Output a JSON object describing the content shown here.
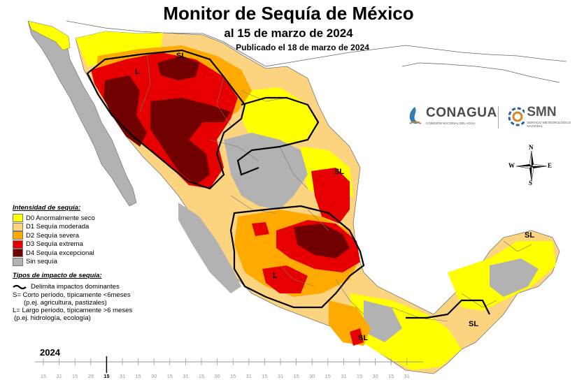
{
  "header": {
    "title": "Monitor de Sequía de México",
    "subtitle": "al 15 de marzo de 2024",
    "published": "Publicado el 18 de marzo de 2024"
  },
  "legend": {
    "title": "Intensidad de sequía:",
    "items": [
      {
        "label": "D0 Anormalmente seco",
        "color": "#ffff00"
      },
      {
        "label": "D1 Sequía moderada",
        "color": "#fcd37f"
      },
      {
        "label": "D2 Sequía severa",
        "color": "#ffaa00"
      },
      {
        "label": "D3 Sequía extrema",
        "color": "#e60000"
      },
      {
        "label": "D4 Sequía excepcional",
        "color": "#730000"
      },
      {
        "label": "Sin sequía",
        "color": "#b2b2b2"
      }
    ],
    "impact_title": "Tipos de impacto de sequía:",
    "impact_line_label": "Delimita impactos dominantes",
    "impact_s_line1": "S= Corto período, típicamente <6meses",
    "impact_s_line2": "(p.ej. agricultura, pastizales)",
    "impact_l_line1": "L= Largo período, típicamente >6 meses",
    "impact_l_line2": "(p.ej. hidrología, ecología)"
  },
  "map_labels": {
    "sl_north": "SL",
    "l_northwest": "L",
    "sl_northeast": "SL",
    "l_center": "L",
    "sl_yucatan": "SL",
    "sl_southeast": "SL",
    "sl_south": "SL"
  },
  "logos": {
    "conagua": "CONAGUA",
    "conagua_sub": "COMISIÓN NACIONAL DEL AGUA",
    "smn": "SMN",
    "smn_sub": "SERVICIO METEOROLÓGICO NACIONAL"
  },
  "compass": {
    "n": "N",
    "s": "S",
    "e": "E",
    "w": "W",
    "icon": "compass-rose-icon"
  },
  "timeline": {
    "year": "2024",
    "ticks": [
      "15",
      "31",
      "15",
      "29",
      "15",
      "31",
      "15",
      "30",
      "15",
      "31",
      "15",
      "30",
      "15",
      "31",
      "15",
      "31",
      "15",
      "30",
      "15",
      "31",
      "15",
      "30",
      "15",
      "31"
    ],
    "current_label": "15",
    "current_index": 4
  },
  "colors": {
    "d0": "#ffff00",
    "d1": "#fcd37f",
    "d2": "#ffaa00",
    "d3": "#e60000",
    "d4": "#730000",
    "none": "#b2b2b2",
    "boundary": "#000000"
  }
}
